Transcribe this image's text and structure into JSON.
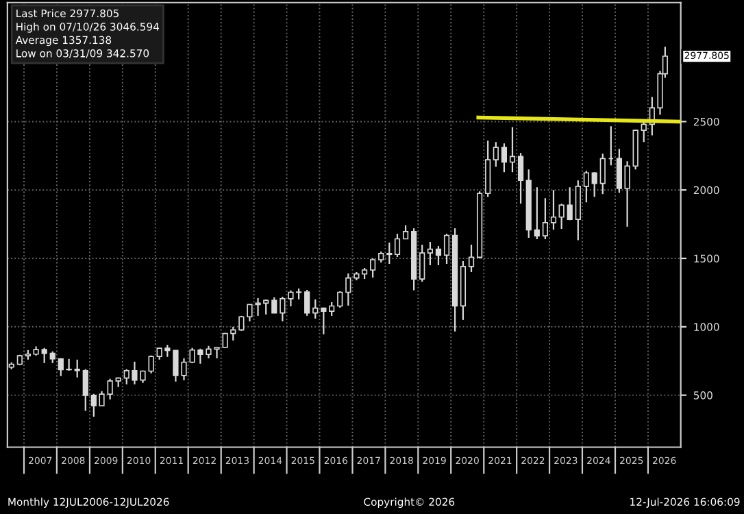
{
  "chart_data": {
    "type": "candlestick",
    "x": [
      "2006-08-15",
      "2006-11-15",
      "2007-02-15",
      "2007-05-15",
      "2007-08-15",
      "2007-11-15",
      "2008-02-15",
      "2008-05-15",
      "2008-08-15",
      "2008-11-15",
      "2009-02-15",
      "2009-05-15",
      "2009-08-15",
      "2009-11-15",
      "2010-02-15",
      "2010-05-15",
      "2010-08-15",
      "2010-11-15",
      "2011-02-15",
      "2011-05-15",
      "2011-08-15",
      "2011-11-15",
      "2012-02-15",
      "2012-05-15",
      "2012-08-15",
      "2012-11-15",
      "2013-02-15",
      "2013-05-15",
      "2013-08-15",
      "2013-11-15",
      "2014-02-15",
      "2014-05-15",
      "2014-08-15",
      "2014-11-15",
      "2015-02-15",
      "2015-05-15",
      "2015-08-15",
      "2015-11-15",
      "2016-02-15",
      "2016-05-15",
      "2016-08-15",
      "2016-11-15",
      "2017-02-15",
      "2017-05-15",
      "2017-08-15",
      "2017-11-15",
      "2018-02-15",
      "2018-05-15",
      "2018-08-15",
      "2018-11-15",
      "2019-02-15",
      "2019-05-15",
      "2019-08-15",
      "2019-11-15",
      "2020-02-15",
      "2020-05-15",
      "2020-08-15",
      "2020-11-15",
      "2021-02-15",
      "2021-05-15",
      "2021-08-15",
      "2021-11-15",
      "2022-02-15",
      "2022-05-15",
      "2022-08-15",
      "2022-11-15",
      "2023-02-15",
      "2023-05-15",
      "2023-08-15",
      "2023-11-15",
      "2024-02-15",
      "2024-05-15",
      "2024-08-15",
      "2024-11-15",
      "2025-02-15",
      "2025-05-15",
      "2025-08-15",
      "2025-11-15",
      "2026-02-15",
      "2026-05-15",
      "2026-07-10"
    ],
    "ohlc": [
      [
        705,
        740,
        690,
        726
      ],
      [
        726,
        795,
        720,
        788
      ],
      [
        788,
        830,
        760,
        800
      ],
      [
        800,
        856,
        790,
        833
      ],
      [
        833,
        845,
        735,
        806
      ],
      [
        806,
        820,
        735,
        766
      ],
      [
        766,
        770,
        640,
        687
      ],
      [
        687,
        765,
        680,
        690
      ],
      [
        690,
        760,
        630,
        680
      ],
      [
        680,
        690,
        385,
        499
      ],
      [
        499,
        510,
        343,
        423
      ],
      [
        423,
        530,
        420,
        508
      ],
      [
        508,
        620,
        470,
        604
      ],
      [
        604,
        630,
        560,
        625
      ],
      [
        625,
        690,
        580,
        679
      ],
      [
        679,
        745,
        580,
        610
      ],
      [
        610,
        680,
        590,
        676
      ],
      [
        676,
        790,
        660,
        783
      ],
      [
        783,
        845,
        760,
        843
      ],
      [
        843,
        868,
        780,
        827
      ],
      [
        827,
        830,
        600,
        644
      ],
      [
        644,
        770,
        610,
        741
      ],
      [
        741,
        845,
        735,
        830
      ],
      [
        830,
        840,
        730,
        798
      ],
      [
        798,
        860,
        770,
        837
      ],
      [
        837,
        850,
        770,
        849
      ],
      [
        849,
        955,
        845,
        951
      ],
      [
        951,
        1000,
        900,
        977
      ],
      [
        977,
        1080,
        970,
        1073
      ],
      [
        1073,
        1165,
        1040,
        1163
      ],
      [
        1163,
        1210,
        1080,
        1173
      ],
      [
        1173,
        1200,
        1090,
        1193
      ],
      [
        1193,
        1215,
        1100,
        1101
      ],
      [
        1101,
        1220,
        1040,
        1205
      ],
      [
        1205,
        1266,
        1150,
        1252
      ],
      [
        1252,
        1280,
        1200,
        1254
      ],
      [
        1254,
        1270,
        1080,
        1101
      ],
      [
        1101,
        1200,
        1060,
        1136
      ],
      [
        1136,
        1140,
        945,
        1114
      ],
      [
        1114,
        1180,
        1080,
        1152
      ],
      [
        1152,
        1260,
        1140,
        1252
      ],
      [
        1252,
        1390,
        1155,
        1357
      ],
      [
        1357,
        1400,
        1340,
        1386
      ],
      [
        1386,
        1430,
        1350,
        1415
      ],
      [
        1415,
        1500,
        1360,
        1490
      ],
      [
        1490,
        1550,
        1470,
        1536
      ],
      [
        1536,
        1615,
        1460,
        1529
      ],
      [
        1529,
        1680,
        1510,
        1643
      ],
      [
        1643,
        1742,
        1640,
        1696
      ],
      [
        1696,
        1720,
        1267,
        1349
      ],
      [
        1349,
        1600,
        1330,
        1540
      ],
      [
        1540,
        1620,
        1450,
        1567
      ],
      [
        1567,
        1590,
        1450,
        1523
      ],
      [
        1523,
        1680,
        1460,
        1668
      ],
      [
        1668,
        1720,
        966,
        1153
      ],
      [
        1153,
        1480,
        1050,
        1441
      ],
      [
        1441,
        1600,
        1400,
        1508
      ],
      [
        1508,
        1990,
        1500,
        1975
      ],
      [
        1975,
        2360,
        1950,
        2221
      ],
      [
        2221,
        2350,
        2170,
        2311
      ],
      [
        2311,
        2340,
        2130,
        2204
      ],
      [
        2204,
        2459,
        2130,
        2245
      ],
      [
        2245,
        2270,
        1900,
        2070
      ],
      [
        2070,
        2150,
        1650,
        1708
      ],
      [
        1708,
        2020,
        1640,
        1665
      ],
      [
        1665,
        1940,
        1640,
        1761
      ],
      [
        1761,
        2000,
        1710,
        1802
      ],
      [
        1802,
        1900,
        1715,
        1889
      ],
      [
        1889,
        2020,
        1780,
        1785
      ],
      [
        1785,
        2070,
        1633,
        2027
      ],
      [
        2027,
        2140,
        1910,
        2125
      ],
      [
        2125,
        2130,
        1950,
        2048
      ],
      [
        2048,
        2265,
        1970,
        2230
      ],
      [
        2230,
        2466,
        2180,
        2230
      ],
      [
        2230,
        2300,
        1980,
        2011
      ],
      [
        2011,
        2210,
        1732,
        2175
      ],
      [
        2175,
        2440,
        2150,
        2436
      ],
      [
        2436,
        2500,
        2350,
        2480
      ],
      [
        2480,
        2680,
        2400,
        2600
      ],
      [
        2600,
        2870,
        2550,
        2850
      ],
      [
        2850,
        3047,
        2820,
        2978
      ]
    ],
    "color": "#d9d9d9",
    "series": [
      {
        "type": "line",
        "x": [
          "2020-11-01",
          "2026-12-31"
        ],
        "values": [
          2530,
          2500
        ],
        "color": "#e6e619"
      }
    ],
    "xlim": [
      "2006-07-01",
      "2026-12-31"
    ],
    "xticks": [
      {
        "value": "2007-01-01",
        "label": null
      },
      {
        "value": "2007-07-01",
        "label": "2007"
      },
      {
        "value": "2008-01-01",
        "label": null
      },
      {
        "value": "2008-07-01",
        "label": "2008"
      },
      {
        "value": "2009-01-01",
        "label": null
      },
      {
        "value": "2009-07-01",
        "label": "2009"
      },
      {
        "value": "2010-01-01",
        "label": null
      },
      {
        "value": "2010-07-01",
        "label": "2010"
      },
      {
        "value": "2011-01-01",
        "label": null
      },
      {
        "value": "2011-07-01",
        "label": "2011"
      },
      {
        "value": "2012-01-01",
        "label": null
      },
      {
        "value": "2012-07-01",
        "label": "2012"
      },
      {
        "value": "2013-01-01",
        "label": null
      },
      {
        "value": "2013-07-01",
        "label": "2013"
      },
      {
        "value": "2014-01-01",
        "label": null
      },
      {
        "value": "2014-07-01",
        "label": "2014"
      },
      {
        "value": "2015-01-01",
        "label": null
      },
      {
        "value": "2015-07-01",
        "label": "2015"
      },
      {
        "value": "2016-01-01",
        "label": null
      },
      {
        "value": "2016-07-01",
        "label": "2016"
      },
      {
        "value": "2017-01-01",
        "label": null
      },
      {
        "value": "2017-07-01",
        "label": "2017"
      },
      {
        "value": "2018-01-01",
        "label": null
      },
      {
        "value": "2018-07-01",
        "label": "2018"
      },
      {
        "value": "2019-01-01",
        "label": null
      },
      {
        "value": "2019-07-01",
        "label": "2019"
      },
      {
        "value": "2020-01-01",
        "label": null
      },
      {
        "value": "2020-07-01",
        "label": "2020"
      },
      {
        "value": "2021-01-01",
        "label": null
      },
      {
        "value": "2021-07-01",
        "label": "2021"
      },
      {
        "value": "2022-01-01",
        "label": null
      },
      {
        "value": "2022-07-01",
        "label": "2022"
      },
      {
        "value": "2023-01-01",
        "label": null
      },
      {
        "value": "2023-07-01",
        "label": "2023"
      },
      {
        "value": "2024-01-01",
        "label": null
      },
      {
        "value": "2024-07-01",
        "label": "2024"
      },
      {
        "value": "2025-01-01",
        "label": null
      },
      {
        "value": "2025-07-01",
        "label": "2025"
      },
      {
        "value": "2026-01-01",
        "label": null
      },
      {
        "value": "2026-07-01",
        "label": "2026"
      }
    ],
    "ylim": [
      120,
      3370
    ],
    "yticks": [
      500,
      1000,
      1500,
      2000,
      2500
    ],
    "grid": true,
    "annotations": [
      "Last Price 2977.805",
      "High on 07/10/26 3046.594",
      "Average 1357.138",
      "Low on 03/31/09 342.570",
      "Monthly 12JUL2006-12JUL2026",
      "Copyright© 2026",
      "12-Jul-2026 16:06:09",
      {
        "text": "2977.805",
        "x": "2026-07-10",
        "y": 2977.805
      }
    ]
  }
}
